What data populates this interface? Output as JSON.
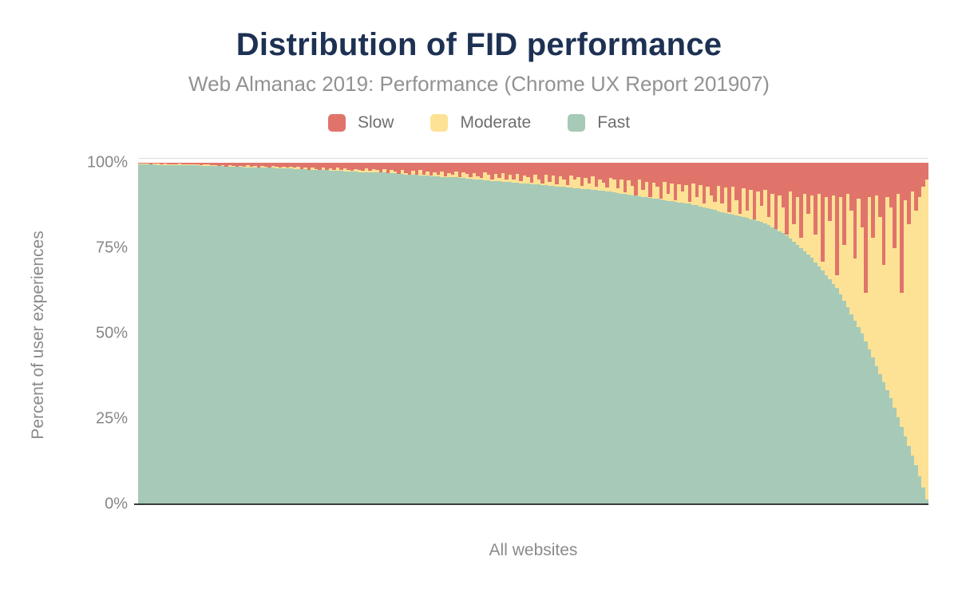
{
  "header": {
    "title": "Distribution of FID performance",
    "subtitle": "Web Almanac 2019: Performance (Chrome UX Report 201907)"
  },
  "legend": {
    "items": [
      {
        "id": "slow",
        "label": "Slow",
        "color": "#e0746b"
      },
      {
        "id": "moderate",
        "label": "Moderate",
        "color": "#fde295"
      },
      {
        "id": "fast",
        "label": "Fast",
        "color": "#a6cab7"
      }
    ]
  },
  "axes": {
    "y_title": "Percent of user experiences",
    "x_title": "All websites",
    "y_ticks": [
      "100%",
      "75%",
      "50%",
      "25%",
      "0%"
    ]
  },
  "colors": {
    "slow": "#e0746b",
    "moderate": "#fde295",
    "fast": "#a6cab7",
    "title": "#1d3153",
    "axis_line": "#3a3a3a",
    "gridline": "#dcdcdc"
  },
  "chart_data": {
    "type": "bar",
    "stacked": true,
    "title": "Distribution of FID performance",
    "subtitle": "Web Almanac 2019: Performance (Chrome UX Report 201907)",
    "xlabel": "All websites",
    "ylabel": "Percent of user experiences",
    "ylim": [
      0,
      100
    ],
    "y_tick_labels": [
      "0%",
      "25%",
      "50%",
      "75%",
      "100%"
    ],
    "legend_position": "top",
    "grid": false,
    "series_order_bottom_to_top": [
      "Fast",
      "Moderate",
      "Slow"
    ],
    "note": "Websites sorted descending by percent fast; 220 equally spaced samples estimated from pixels; moderate = 100 - fast - slow",
    "samples": {
      "count": 220,
      "fast": [
        99.6,
        99.6,
        99.5,
        99.5,
        99.5,
        99.4,
        99.4,
        99.4,
        99.4,
        99.3,
        99.3,
        99.3,
        99.3,
        99.2,
        99.2,
        99.2,
        99.2,
        99.1,
        99.1,
        99.1,
        99.1,
        99.0,
        99.0,
        99.0,
        98.9,
        98.9,
        98.8,
        98.8,
        98.8,
        98.7,
        98.7,
        98.7,
        98.6,
        98.6,
        98.6,
        98.5,
        98.5,
        98.5,
        98.4,
        98.4,
        98.3,
        98.3,
        98.3,
        98.2,
        98.2,
        98.1,
        98.1,
        98.0,
        98.0,
        97.9,
        97.9,
        97.8,
        97.8,
        97.7,
        97.7,
        97.6,
        97.6,
        97.5,
        97.5,
        97.4,
        97.4,
        97.3,
        97.3,
        97.3,
        97.3,
        97.3,
        97.2,
        97.2,
        97.1,
        97.0,
        96.9,
        96.9,
        96.8,
        96.7,
        96.6,
        96.6,
        96.5,
        96.4,
        96.3,
        96.3,
        96.2,
        96.1,
        96.0,
        96.0,
        95.9,
        95.8,
        95.8,
        95.8,
        95.7,
        95.6,
        95.5,
        95.4,
        95.3,
        95.2,
        95.1,
        95.0,
        94.9,
        94.8,
        94.7,
        94.6,
        94.6,
        94.5,
        94.4,
        94.3,
        94.2,
        94.1,
        94.0,
        93.9,
        93.9,
        93.8,
        93.7,
        93.6,
        93.5,
        93.4,
        93.3,
        93.2,
        93.1,
        93.0,
        92.9,
        92.8,
        92.7,
        92.6,
        92.5,
        92.4,
        92.3,
        92.2,
        92.1,
        92.0,
        91.9,
        91.8,
        91.6,
        91.5,
        91.3,
        91.2,
        91.0,
        90.8,
        90.7,
        90.5,
        90.4,
        90.2,
        90.0,
        89.9,
        89.7,
        89.6,
        89.4,
        89.2,
        89.1,
        88.9,
        88.8,
        88.6,
        88.4,
        88.3,
        88.1,
        88.0,
        87.7,
        87.5,
        87.2,
        86.9,
        86.6,
        86.4,
        86.1,
        85.8,
        85.5,
        85.3,
        85.0,
        84.8,
        84.5,
        84.3,
        84.0,
        83.8,
        83.5,
        83.3,
        83.0,
        82.8,
        82.2,
        81.7,
        81.1,
        80.5,
        80.0,
        79.4,
        78.8,
        77.9,
        76.9,
        76.0,
        75.1,
        74.1,
        73.2,
        72.2,
        70.9,
        69.7,
        68.4,
        67.1,
        65.8,
        64.6,
        63.3,
        61.4,
        59.5,
        57.6,
        55.7,
        53.8,
        51.9,
        50.0,
        47.6,
        45.3,
        42.9,
        40.5,
        38.1,
        35.8,
        33.4,
        31.0,
        28.2,
        25.4,
        22.6,
        19.9,
        17.1,
        14.3,
        11.5,
        8.2,
        4.8,
        1.5
      ],
      "slow": [
        0.2,
        0.3,
        0.2,
        0.4,
        0.3,
        0.3,
        0.5,
        0.3,
        0.4,
        0.5,
        0.4,
        0.3,
        0.5,
        0.4,
        0.5,
        0.4,
        0.5,
        0.6,
        0.4,
        0.5,
        0.6,
        0.7,
        0.9,
        0.7,
        1.1,
        0.8,
        1.0,
        1.2,
        0.9,
        1.1,
        0.8,
        1.2,
        1.0,
        1.3,
        0.9,
        1.2,
        1.3,
        1.0,
        1.2,
        1.4,
        1.1,
        1.3,
        1.2,
        1.4,
        1.2,
        1.8,
        1.4,
        2.0,
        1.3,
        1.8,
        2.1,
        1.5,
        2.2,
        1.6,
        2.0,
        1.4,
        2.2,
        1.7,
        2.0,
        2.4,
        1.8,
        2.0,
        2.3,
        1.6,
        2.4,
        1.9,
        2.0,
        3.0,
        1.8,
        3.2,
        2.2,
        2.6,
        3.4,
        2.0,
        3.0,
        3.5,
        2.4,
        3.6,
        2.2,
        3.4,
        2.6,
        3.8,
        2.8,
        3.5,
        2.5,
        4.0,
        3.0,
        3.6,
        2.6,
        4.2,
        2.8,
        3.2,
        4.3,
        3.0,
        4.0,
        4.5,
        2.8,
        3.4,
        4.8,
        3.2,
        4.5,
        3.0,
        5.0,
        3.5,
        5.0,
        3.2,
        5.4,
        3.8,
        4.2,
        5.8,
        3.5,
        4.8,
        6.0,
        3.6,
        5.5,
        3.8,
        6.3,
        4.0,
        5.0,
        6.5,
        3.8,
        5.0,
        4.2,
        6.8,
        4.5,
        6.0,
        4.0,
        7.0,
        4.8,
        5.8,
        7.2,
        4.5,
        5.0,
        7.5,
        4.8,
        8.7,
        5.2,
        6.8,
        9.5,
        5.0,
        8.0,
        5.5,
        10.0,
        5.8,
        7.0,
        10.5,
        5.5,
        9.0,
        6.0,
        11.0,
        6.2,
        8.5,
        6.5,
        11.5,
        6.0,
        10.0,
        6.5,
        12.0,
        7.0,
        9.5,
        11.5,
        6.8,
        12.0,
        7.2,
        14.5,
        7.0,
        11.0,
        15.0,
        7.5,
        14.0,
        8.0,
        16.5,
        8.5,
        12.5,
        8.0,
        16.0,
        9.0,
        19.5,
        9.5,
        13.0,
        21.0,
        8.5,
        18.0,
        10.0,
        22.0,
        9.0,
        15.0,
        9.5,
        21.0,
        9.0,
        29.0,
        10.0,
        17.0,
        9.5,
        33.0,
        10.0,
        24.0,
        9.0,
        14.0,
        28.0,
        10.5,
        19.0,
        38.0,
        10.0,
        22.0,
        9.5,
        16.0,
        30.0,
        10.0,
        13.0,
        25.0,
        9.0,
        38.0,
        11.0,
        18.0,
        8.5,
        14.0,
        10.0,
        7.0,
        5.0
      ]
    }
  }
}
